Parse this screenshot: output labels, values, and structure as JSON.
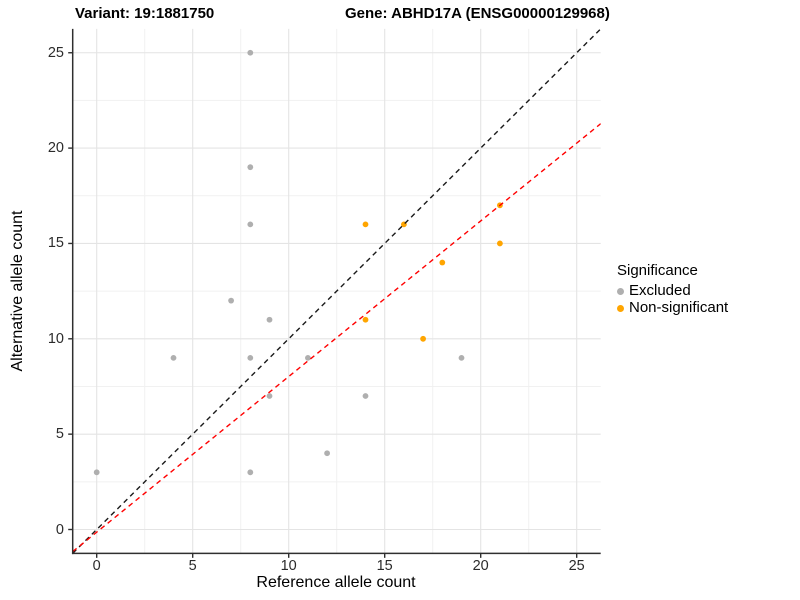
{
  "titles": {
    "variant": "Variant: 19:1881750",
    "gene": "Gene: ABHD17A (ENSG00000129968)"
  },
  "legend": {
    "title": "Significance",
    "items": [
      {
        "label": "Excluded",
        "color": "#AFAFAF"
      },
      {
        "label": "Non-significant",
        "color": "#FFA500"
      }
    ]
  },
  "chart_data": {
    "type": "scatter",
    "title_left": "Variant: 19:1881750",
    "title_right": "Gene: ABHD17A (ENSG00000129968)",
    "xlabel": "Reference allele count",
    "ylabel": "Alternative allele count",
    "xlim": [
      -1.25,
      26.25
    ],
    "ylim": [
      -1.25,
      26.25
    ],
    "x_ticks": [
      0,
      5,
      10,
      15,
      20,
      25
    ],
    "y_ticks": [
      0,
      5,
      10,
      15,
      20,
      25
    ],
    "minor_gridlines": [
      2.5,
      7.5,
      12.5,
      17.5,
      22.5
    ],
    "grid": "on",
    "legend_position": "right",
    "series": [
      {
        "name": "Excluded",
        "color": "#AFAFAF",
        "points": [
          [
            0,
            3
          ],
          [
            4,
            9
          ],
          [
            7,
            12
          ],
          [
            8,
            3
          ],
          [
            8,
            9
          ],
          [
            8,
            16
          ],
          [
            8,
            19
          ],
          [
            8,
            25
          ],
          [
            9,
            7
          ],
          [
            9,
            11
          ],
          [
            11,
            9
          ],
          [
            12,
            4
          ],
          [
            14,
            7
          ],
          [
            19,
            9
          ]
        ]
      },
      {
        "name": "Non-significant",
        "color": "#FFA500",
        "points": [
          [
            14,
            11
          ],
          [
            14,
            16
          ],
          [
            16,
            16
          ],
          [
            17,
            10
          ],
          [
            18,
            14
          ],
          [
            21,
            15
          ],
          [
            21,
            17
          ]
        ]
      }
    ],
    "lines": [
      {
        "name": "identity",
        "color": "#1A1A1A",
        "style": "dashed",
        "slope": 1,
        "intercept": 0
      },
      {
        "name": "regression",
        "color": "#FF0000",
        "style": "dashed",
        "slope": 0.816,
        "intercept": -0.14
      }
    ]
  }
}
